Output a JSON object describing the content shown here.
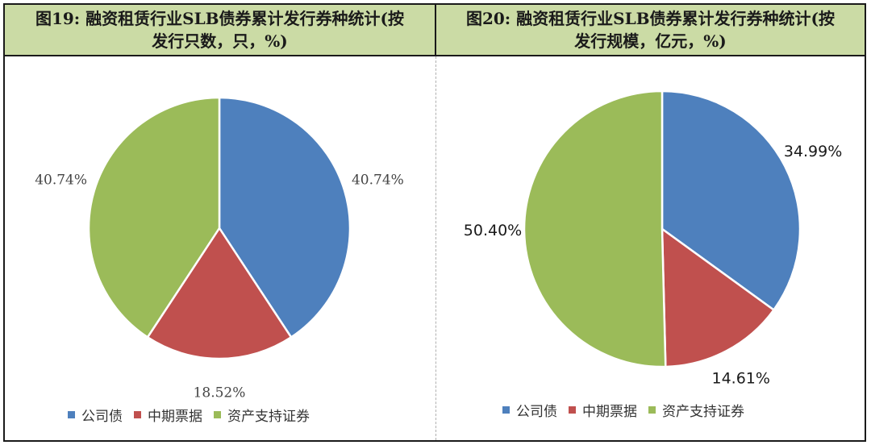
{
  "figures": [
    {
      "title": "图19: 融资租赁行业SLB债券累计发行券种统计(按发行只数，只，%)",
      "title_lines": [
        "图19: 融资租赁行业SLB债券累计发行券种统计(按",
        "发行只数，只，%)"
      ]
    },
    {
      "title": "图20: 融资租赁行业SLB债券累计发行券种统计(按发行规模，亿元，%)",
      "title_lines": [
        "图20: 融资租赁行业SLB债券累计发行券种统计(按",
        "发行规模，亿元，%)"
      ]
    }
  ],
  "legend_labels": [
    "公司债",
    "中期票据",
    "资产支持证券"
  ],
  "colors": {
    "公司债": "#4e80bd",
    "中期票据": "#c0504e",
    "资产支持证券": "#9bbb59",
    "header_bg": "#cbdba5"
  },
  "chart_data": [
    {
      "type": "pie",
      "title": "图19: 融资租赁行业SLB债券累计发行券种统计(按发行只数，只，%)",
      "categories": [
        "公司债",
        "中期票据",
        "资产支持证券"
      ],
      "values": [
        40.74,
        18.52,
        40.74
      ],
      "value_labels": [
        "40.74%",
        "18.52%",
        "40.74%"
      ],
      "legend": "bottom"
    },
    {
      "type": "pie",
      "title": "图20: 融资租赁行业SLB债券累计发行券种统计(按发行规模，亿元，%)",
      "categories": [
        "公司债",
        "中期票据",
        "资产支持证券"
      ],
      "values": [
        34.99,
        14.61,
        50.4
      ],
      "value_labels": [
        "34.99%",
        "14.61%",
        "50.40%"
      ],
      "legend": "bottom"
    }
  ]
}
